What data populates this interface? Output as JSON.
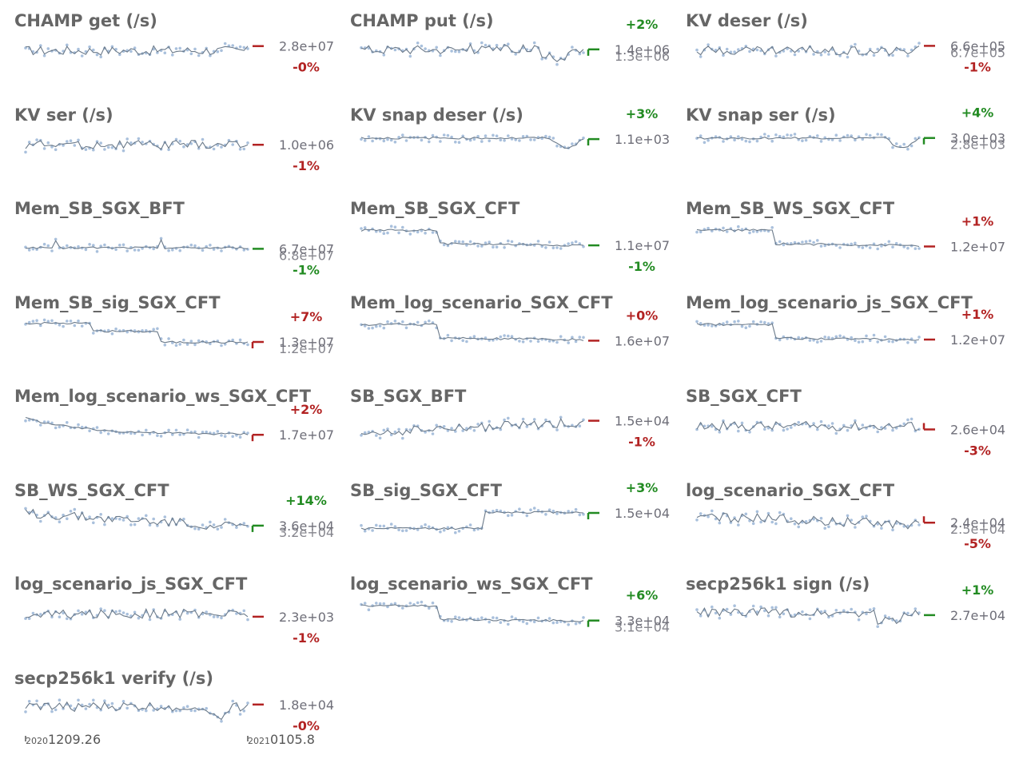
{
  "colors": {
    "title": "#666666",
    "line": "#6b7a8a",
    "points": "#a9c0dc",
    "up_good": "#228b22",
    "down_bad": "#b22222",
    "value_text": "#6e6e78"
  },
  "date_axis": {
    "start": {
      "year": "2020",
      "date": "1209.26"
    },
    "end": {
      "year": "2021",
      "date": "0105.8"
    }
  },
  "chart_data": [
    {
      "type": "line",
      "title": "CHAMP get (/s)",
      "delta": "-0%",
      "delta_color": "red",
      "current": "2.8e+07",
      "previous": "2.8e+07",
      "shape": "noisy"
    },
    {
      "type": "line",
      "title": "CHAMP put (/s)",
      "delta": "+2%",
      "delta_color": "green",
      "current": "1.4e+06",
      "previous": "1.3e+06",
      "shape": "noisy_dip"
    },
    {
      "type": "line",
      "title": "KV deser (/s)",
      "delta": "-1%",
      "delta_color": "red",
      "current": "6.6e+05",
      "previous": "6.7e+05",
      "shape": "noisy"
    },
    {
      "type": "line",
      "title": "KV ser (/s)",
      "delta": "-1%",
      "delta_color": "red",
      "current": "1.0e+06",
      "previous": "1.0e+06",
      "shape": "noisy"
    },
    {
      "type": "line",
      "title": "KV snap deser (/s)",
      "delta": "+3%",
      "delta_color": "green",
      "current": "1.1e+03",
      "previous": "1.1e+03",
      "shape": "flat_dip"
    },
    {
      "type": "line",
      "title": "KV snap ser (/s)",
      "delta": "+4%",
      "delta_color": "green",
      "current": "3.0e+03",
      "previous": "2.8e+03",
      "shape": "flat_dip"
    },
    {
      "type": "line",
      "title": "Mem_SB_SGX_BFT",
      "delta": "-1%",
      "delta_color": "green",
      "current": "6.7e+07",
      "previous": "6.8e+07",
      "shape": "flat_spikes"
    },
    {
      "type": "line",
      "title": "Mem_SB_SGX_CFT",
      "delta": "-1%",
      "delta_color": "green",
      "current": "1.1e+07",
      "previous": "1.1e+07",
      "shape": "step_down"
    },
    {
      "type": "line",
      "title": "Mem_SB_WS_SGX_CFT",
      "delta": "+1%",
      "delta_color": "red",
      "current": "1.2e+07",
      "previous": "1.2e+07",
      "shape": "step_down"
    },
    {
      "type": "line",
      "title": "Mem_SB_sig_SGX_CFT",
      "delta": "+7%",
      "delta_color": "red",
      "current": "1.3e+07",
      "previous": "1.2e+07",
      "shape": "two_steps"
    },
    {
      "type": "line",
      "title": "Mem_log_scenario_SGX_CFT",
      "delta": "+0%",
      "delta_color": "red",
      "current": "1.6e+07",
      "previous": "1.6e+07",
      "shape": "step_down"
    },
    {
      "type": "line",
      "title": "Mem_log_scenario_js_SGX_CFT",
      "delta": "+1%",
      "delta_color": "red",
      "current": "1.2e+07",
      "previous": "1.2e+07",
      "shape": "step_down"
    },
    {
      "type": "line",
      "title": "Mem_log_scenario_ws_SGX_CFT",
      "delta": "+2%",
      "delta_color": "red",
      "current": "1.7e+07",
      "previous": "1.7e+07",
      "shape": "decay"
    },
    {
      "type": "line",
      "title": "SB_SGX_BFT",
      "delta": "-1%",
      "delta_color": "red",
      "current": "1.5e+04",
      "previous": "1.5e+04",
      "shape": "rise"
    },
    {
      "type": "line",
      "title": "SB_SGX_CFT",
      "delta": "-3%",
      "delta_color": "red",
      "current": "2.6e+04",
      "previous": "2.6e+04",
      "shape": "noisy"
    },
    {
      "type": "line",
      "title": "SB_WS_SGX_CFT",
      "delta": "+14%",
      "delta_color": "green",
      "current": "3.6e+04",
      "previous": "3.2e+04",
      "shape": "decline"
    },
    {
      "type": "line",
      "title": "SB_sig_SGX_CFT",
      "delta": "+3%",
      "delta_color": "green",
      "current": "1.5e+04",
      "previous": "1.5e+04",
      "shape": "step_up"
    },
    {
      "type": "line",
      "title": "log_scenario_SGX_CFT",
      "delta": "-5%",
      "delta_color": "red",
      "current": "2.4e+04",
      "previous": "2.5e+04",
      "shape": "noisy_decline"
    },
    {
      "type": "line",
      "title": "log_scenario_js_SGX_CFT",
      "delta": "-1%",
      "delta_color": "red",
      "current": "2.3e+03",
      "previous": "2.3e+03",
      "shape": "noisy"
    },
    {
      "type": "line",
      "title": "log_scenario_ws_SGX_CFT",
      "delta": "+6%",
      "delta_color": "green",
      "current": "3.3e+04",
      "previous": "3.1e+04",
      "shape": "step_down"
    },
    {
      "type": "line",
      "title": "secp256k1 sign (/s)",
      "delta": "+1%",
      "delta_color": "green",
      "current": "2.7e+04",
      "previous": "2.7e+04",
      "shape": "noisy_dip"
    },
    {
      "type": "line",
      "title": "secp256k1 verify (/s)",
      "delta": "-0%",
      "delta_color": "red",
      "current": "1.8e+04",
      "previous": "1.8e+04",
      "shape": "noisy_dip"
    }
  ]
}
